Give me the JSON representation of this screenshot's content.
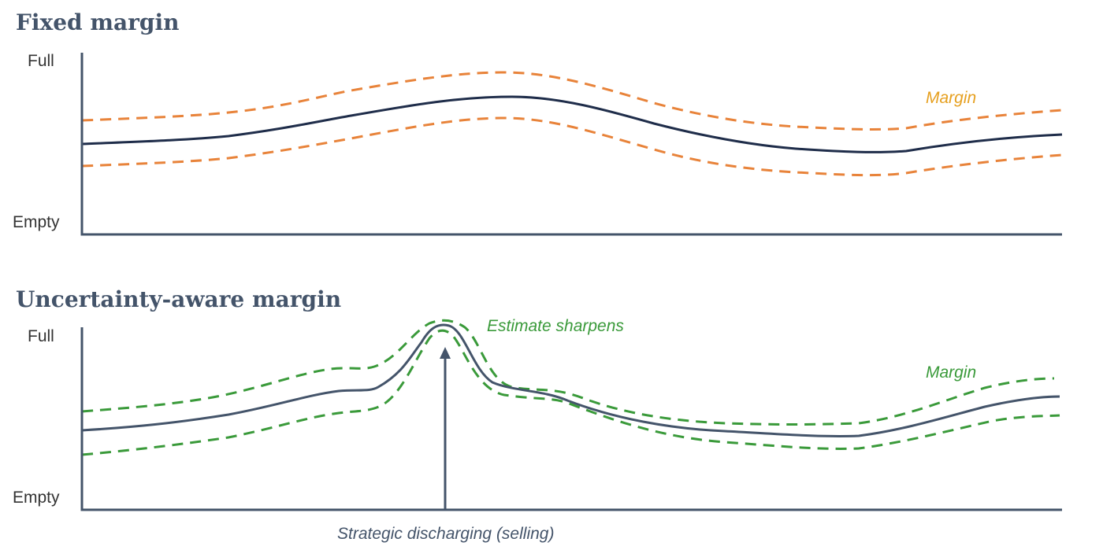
{
  "panels": [
    {
      "title": "Fixed margin",
      "y_top_label": "Full",
      "y_bottom_label": "Empty",
      "margin_label": "Margin",
      "margin_color": "#e8833a",
      "margin_label_color": "#e6a020"
    },
    {
      "title": "Uncertainty-aware margin",
      "y_top_label": "Full",
      "y_bottom_label": "Empty",
      "margin_label": "Margin",
      "annotation": "Estimate sharpens",
      "arrow_label": "Strategic discharging (selling)",
      "margin_color": "#3a9a3a",
      "margin_label_color": "#3a9a3a"
    }
  ],
  "colors": {
    "axis": "#44546a",
    "estimate_line_1": "#1f2d4a",
    "estimate_line_2": "#44546a",
    "title": "#44546a"
  }
}
